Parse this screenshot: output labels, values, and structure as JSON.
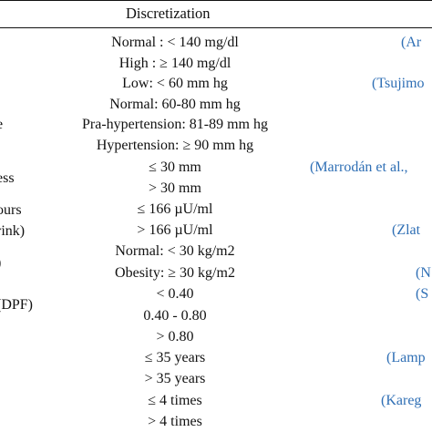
{
  "table": {
    "header": "Discretization",
    "left_fragments": [
      {
        "text": "e",
        "row": 5
      },
      {
        "text": "ess",
        "row": 8
      },
      {
        "text": "ours",
        "row": 10
      },
      {
        "text": "rink)",
        "row": 11
      },
      {
        "text": ")",
        "row": 13
      },
      {
        "text": "(DPF)",
        "row": 15
      }
    ],
    "rows": [
      "Normal : < 140 mg/dl",
      "High : ≥ 140 mg/dl",
      "Low: < 60 mm hg",
      "Normal: 60-80 mm hg",
      "Pra-hypertension: 81-89 mm hg",
      "Hypertension: ≥ 90 mm hg",
      "≤ 30 mm",
      "> 30 mm",
      "≤ 166 µU/ml",
      "> 166 µU/ml",
      "Normal: < 30 kg/m2",
      "Obesity: ≥ 30 kg/m2",
      "< 0.40",
      "0.40 - 0.80",
      "> 0.80",
      "≤ 35 years",
      "> 35 years",
      "≤ 4 times",
      "> 4 times"
    ],
    "references": [
      {
        "text": "(Ar",
        "row": 0
      },
      {
        "text": "(Tsujimo",
        "row": 2
      },
      {
        "text": "(Marrodán et al.,",
        "row": 6
      },
      {
        "text": "(Zlat",
        "row": 9
      },
      {
        "text": "(N",
        "row": 11
      },
      {
        "text": "(S",
        "row": 12
      },
      {
        "text": "(Lamp",
        "row": 15
      },
      {
        "text": "(Kareg",
        "row": 17
      }
    ],
    "colors": {
      "rule": "#111111",
      "text": "#111111",
      "reference": "#2f6fb5"
    }
  }
}
